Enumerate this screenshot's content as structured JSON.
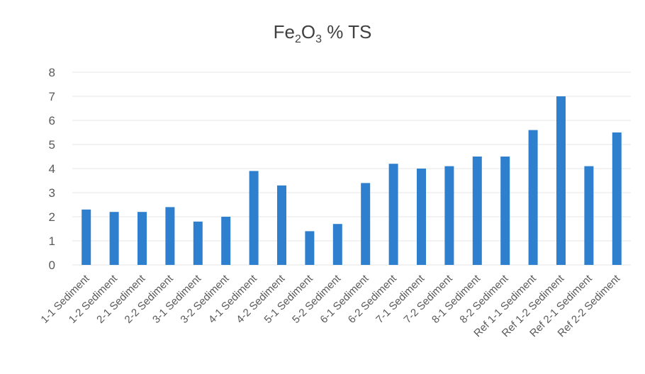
{
  "chart_data": {
    "type": "bar",
    "title_parts": [
      "Fe",
      "2",
      "O",
      "3",
      " % TS"
    ],
    "categories": [
      "1-1 Sediment",
      "1-2 Sediment",
      "2-1 Sediment",
      "2-2 Sediment",
      "3-1 Sediment",
      "3-2 Sediment",
      "4-1 Sediment",
      "4-2 Sediment",
      "5-1 Sediment",
      "5-2 Sediment",
      "6-1 Sediment",
      "6-2 Sediment",
      "7-1 Sediment",
      "7-2 Sediment",
      "8-1 Sediment",
      "8-2 Sediment",
      "Ref 1-1 Sediment",
      "Ref 1-2 Sediment",
      "Ref 2-1 Sediment",
      "Ref 2-2 Sediment"
    ],
    "values": [
      2.3,
      2.2,
      2.2,
      2.4,
      1.8,
      2.0,
      3.9,
      3.3,
      1.4,
      1.7,
      3.4,
      4.2,
      4.0,
      4.1,
      4.5,
      4.5,
      5.6,
      7.0,
      4.1,
      5.5
    ],
    "yticks": [
      "0",
      "1",
      "2",
      "3",
      "4",
      "5",
      "6",
      "7",
      "8"
    ],
    "ylim": [
      0,
      8
    ],
    "grid": true,
    "bar_color": "#2f7fcf",
    "grid_color": "#e6e6e6",
    "text_color": "#595959"
  }
}
